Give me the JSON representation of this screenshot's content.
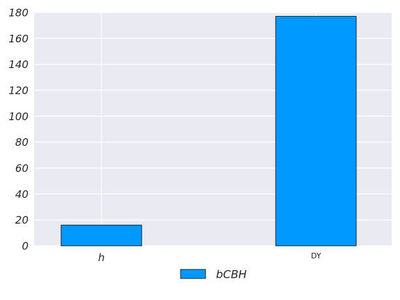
{
  "chart_data": {
    "type": "bar",
    "categories": [
      "h",
      "DY"
    ],
    "series": [
      {
        "name": "bCBH",
        "values": [
          16,
          177
        ]
      }
    ],
    "ylim": [
      0,
      180
    ],
    "yticks": [
      0,
      20,
      40,
      60,
      80,
      100,
      120,
      140,
      160,
      180
    ],
    "grid": true,
    "legend": "bottom-center",
    "colors": {
      "bar": "#0099ff",
      "bar_edge": "#000000",
      "plot_background": "#eaeaf2",
      "grid": "#ffffff"
    }
  }
}
